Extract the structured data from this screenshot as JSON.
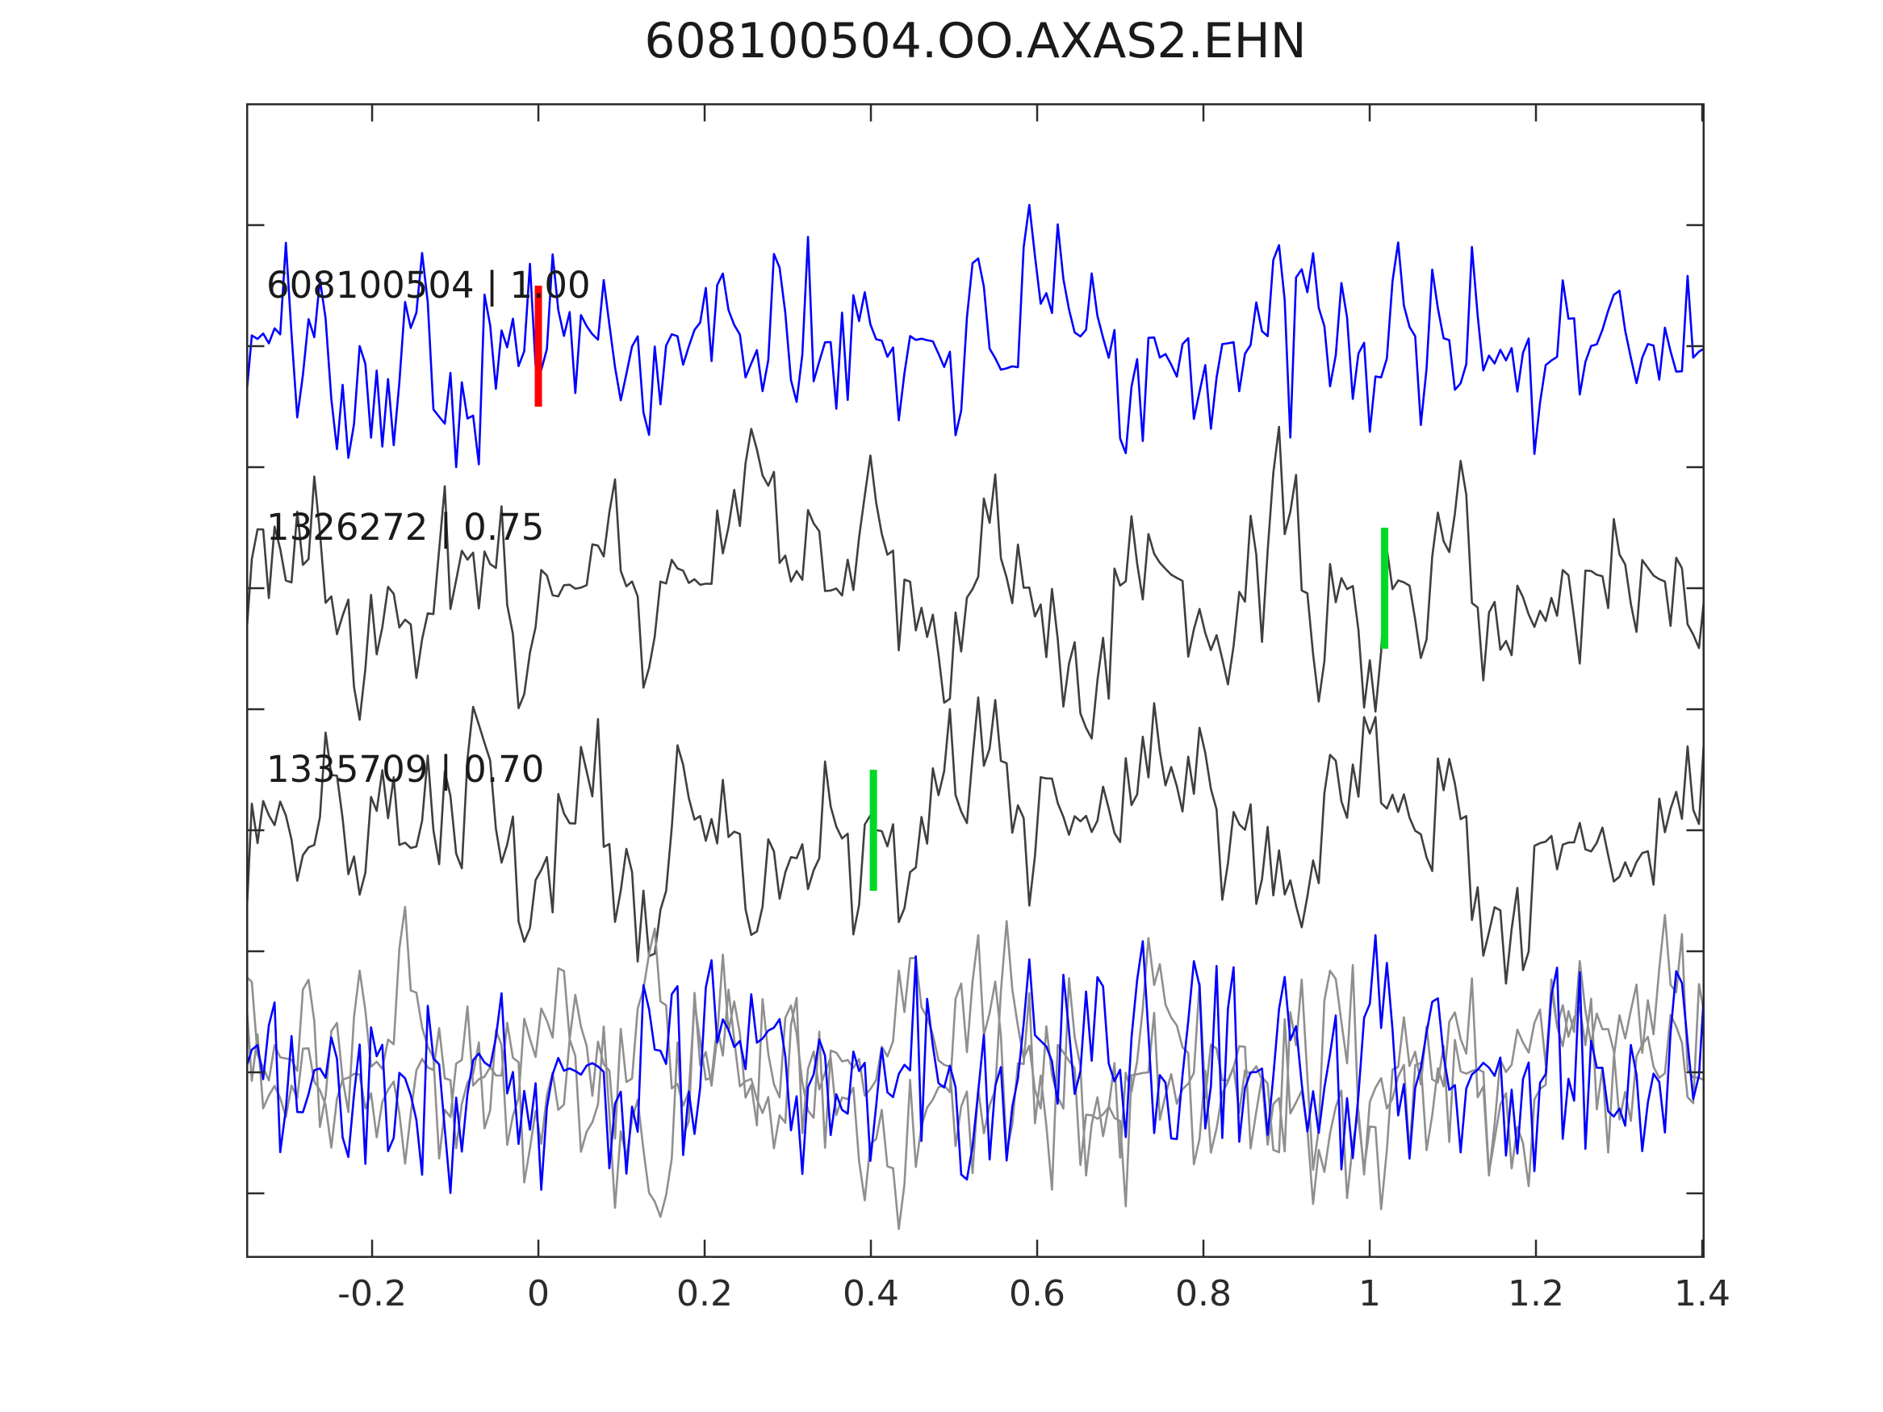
{
  "chart_data": {
    "type": "line",
    "title": "608100504.OO.AXAS2.EHN",
    "xlabel": "",
    "ylabel": "",
    "xlim": [
      -0.3515,
      1.4029
    ],
    "x_ticks": [
      -0.2,
      0,
      0.2,
      0.4,
      0.6,
      0.8,
      1,
      1.2,
      1.4
    ],
    "x_tick_labels": [
      "-0.2",
      "0",
      "0.2",
      "0.4",
      "0.6",
      "0.8",
      "1",
      "1.2",
      "1.4"
    ],
    "y_ticks_count": 9,
    "grid": false,
    "legend_position": "none",
    "colors": {
      "background": "#ffffff",
      "axis": "#2b2b2b",
      "text": "#1a1a1a",
      "template_blue": "#0000ff",
      "detection_gray": "#3f3f3f",
      "overlay_gray": "#8f8f8f",
      "pick_red": "#ff0000",
      "pick_green": "#00d926"
    },
    "rows": [
      {
        "label": "608100504 | 1.00",
        "picks": [
          {
            "x": 0.0,
            "color": "#ff0000"
          }
        ],
        "traces": [
          {
            "color": "#0000ff",
            "seed": 101,
            "smooth": 0.38,
            "spike": 2.2,
            "amp": 175
          }
        ]
      },
      {
        "label": "1326272 | 0.75",
        "picks": [
          {
            "x": 1.018,
            "color": "#00d926"
          }
        ],
        "traces": [
          {
            "color": "#3f3f3f",
            "seed": 207,
            "smooth": 0.62,
            "spike": 2.2,
            "amp": 200
          }
        ]
      },
      {
        "label": "1335709 | 0.70",
        "picks": [
          {
            "x": 0.403,
            "color": "#00d926"
          }
        ],
        "traces": [
          {
            "color": "#3f3f3f",
            "seed": 313,
            "smooth": 0.62,
            "spike": 2.2,
            "amp": 190
          }
        ]
      },
      {
        "label": "",
        "picks": [],
        "traces": [
          {
            "color": "#8f8f8f",
            "seed": 421,
            "smooth": 0.55,
            "spike": 2.2,
            "amp": 205
          },
          {
            "color": "#8f8f8f",
            "seed": 533,
            "smooth": 0.55,
            "spike": 2.2,
            "amp": 195
          },
          {
            "color": "#0000ff",
            "seed": 642,
            "smooth": 0.3,
            "spike": 2.2,
            "amp": 170
          }
        ]
      }
    ],
    "n_points": 258,
    "note": "Waveform shapes are seeded pseudo-random approximations of the original noisy seismic traces; title, labels, pick positions, tick values and colors are read from the screenshot."
  }
}
